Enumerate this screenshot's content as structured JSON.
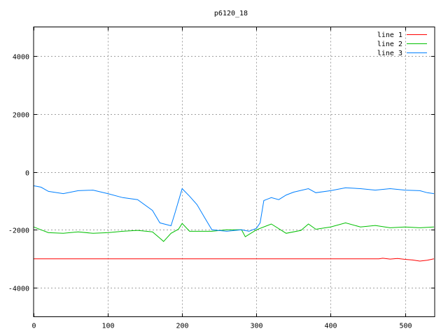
{
  "chart_data": {
    "type": "line",
    "title": "p6120_18",
    "xlabel": "",
    "ylabel": "",
    "xlim": [
      0,
      540
    ],
    "ylim": [
      -5000,
      5000
    ],
    "xticks": [
      0,
      100,
      200,
      300,
      400,
      500
    ],
    "yticks": [
      -4000,
      -2000,
      0,
      2000,
      4000
    ],
    "grid": true,
    "legend_position": "top-right",
    "series": [
      {
        "name": "line 1",
        "color": "#ff0000",
        "x": [
          0,
          100,
          200,
          300,
          400,
          465,
          470,
          480,
          490,
          500,
          510,
          520,
          530,
          539
        ],
        "y": [
          -3000,
          -3000,
          -3000,
          -3000,
          -3000,
          -3000,
          -2980,
          -3010,
          -2990,
          -3020,
          -3040,
          -3080,
          -3050,
          -3000
        ]
      },
      {
        "name": "line 2",
        "color": "#00c000",
        "x": [
          0,
          10,
          20,
          40,
          60,
          80,
          100,
          120,
          140,
          160,
          170,
          175,
          185,
          195,
          200,
          210,
          240,
          260,
          280,
          285,
          300,
          320,
          340,
          360,
          370,
          380,
          400,
          420,
          440,
          460,
          480,
          500,
          520,
          539
        ],
        "y": [
          -1900,
          -2000,
          -2100,
          -2120,
          -2070,
          -2120,
          -2100,
          -2050,
          -2020,
          -2070,
          -2290,
          -2400,
          -2120,
          -1980,
          -1780,
          -2050,
          -2050,
          -2000,
          -2000,
          -2240,
          -2000,
          -1800,
          -2120,
          -2020,
          -1800,
          -1980,
          -1900,
          -1760,
          -1900,
          -1850,
          -1930,
          -1900,
          -1930,
          -1900
        ]
      },
      {
        "name": "line 3",
        "color": "#0080ff",
        "x": [
          0,
          10,
          20,
          40,
          60,
          80,
          100,
          120,
          140,
          160,
          170,
          185,
          190,
          200,
          210,
          220,
          230,
          240,
          260,
          280,
          290,
          300,
          305,
          310,
          320,
          330,
          340,
          350,
          370,
          380,
          400,
          420,
          440,
          460,
          480,
          500,
          520,
          530,
          539
        ],
        "y": [
          -480,
          -530,
          -675,
          -750,
          -650,
          -630,
          -750,
          -890,
          -960,
          -1330,
          -1760,
          -1860,
          -1450,
          -580,
          -840,
          -1130,
          -1570,
          -2000,
          -2050,
          -2000,
          -2050,
          -1950,
          -1760,
          -990,
          -890,
          -960,
          -800,
          -700,
          -580,
          -720,
          -650,
          -550,
          -580,
          -630,
          -580,
          -630,
          -650,
          -720,
          -750
        ]
      }
    ]
  }
}
